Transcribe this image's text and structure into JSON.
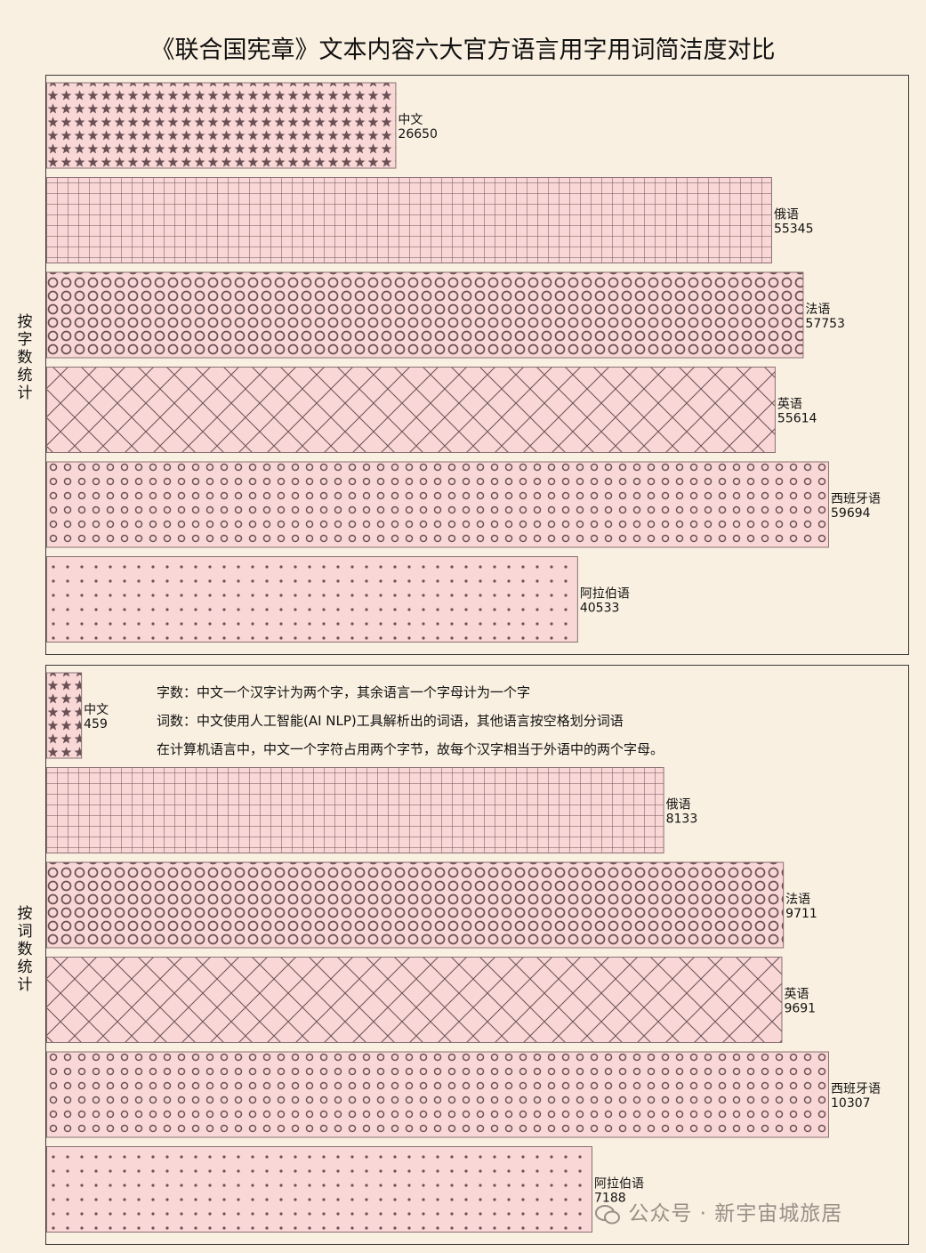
{
  "chart_data": [
    {
      "type": "bar",
      "orientation": "horizontal",
      "title": "《联合国宪章》文本内容六大官方语言用字用词简洁度对比",
      "ylabel": "按字数统计",
      "categories": [
        "中文",
        "俄语",
        "法语",
        "英语",
        "西班牙语",
        "阿拉伯语"
      ],
      "values": [
        26650,
        55345,
        57753,
        55614,
        59694,
        40533
      ],
      "patterns": [
        "stars",
        "grid",
        "rings",
        "crosshatch",
        "circles",
        "dots"
      ]
    },
    {
      "type": "bar",
      "orientation": "horizontal",
      "ylabel": "按词数统计",
      "categories": [
        "中文",
        "俄语",
        "法语",
        "英语",
        "西班牙语",
        "阿拉伯语"
      ],
      "values": [
        459,
        8133,
        9711,
        9691,
        10307,
        7188
      ],
      "patterns": [
        "stars",
        "grid",
        "rings",
        "crosshatch",
        "circles",
        "dots"
      ],
      "notes": [
        "字数：中文一个汉字计为两个字，其余语言一个字母计为一个字",
        "词数：中文使用人工智能(AI NLP)工具解析出的词语，其他语言按空格划分词语",
        "在计算机语言中，中文一个字符占用两个字节，故每个汉字相当于外语中的两个字母。"
      ]
    }
  ],
  "colors": {
    "bar_fill": "#f8d7d6",
    "pattern": "#6b5155",
    "background": "#faf0e1",
    "border": "#3a3a3a"
  },
  "watermark": "公众号 · 新宇宙城旅居"
}
